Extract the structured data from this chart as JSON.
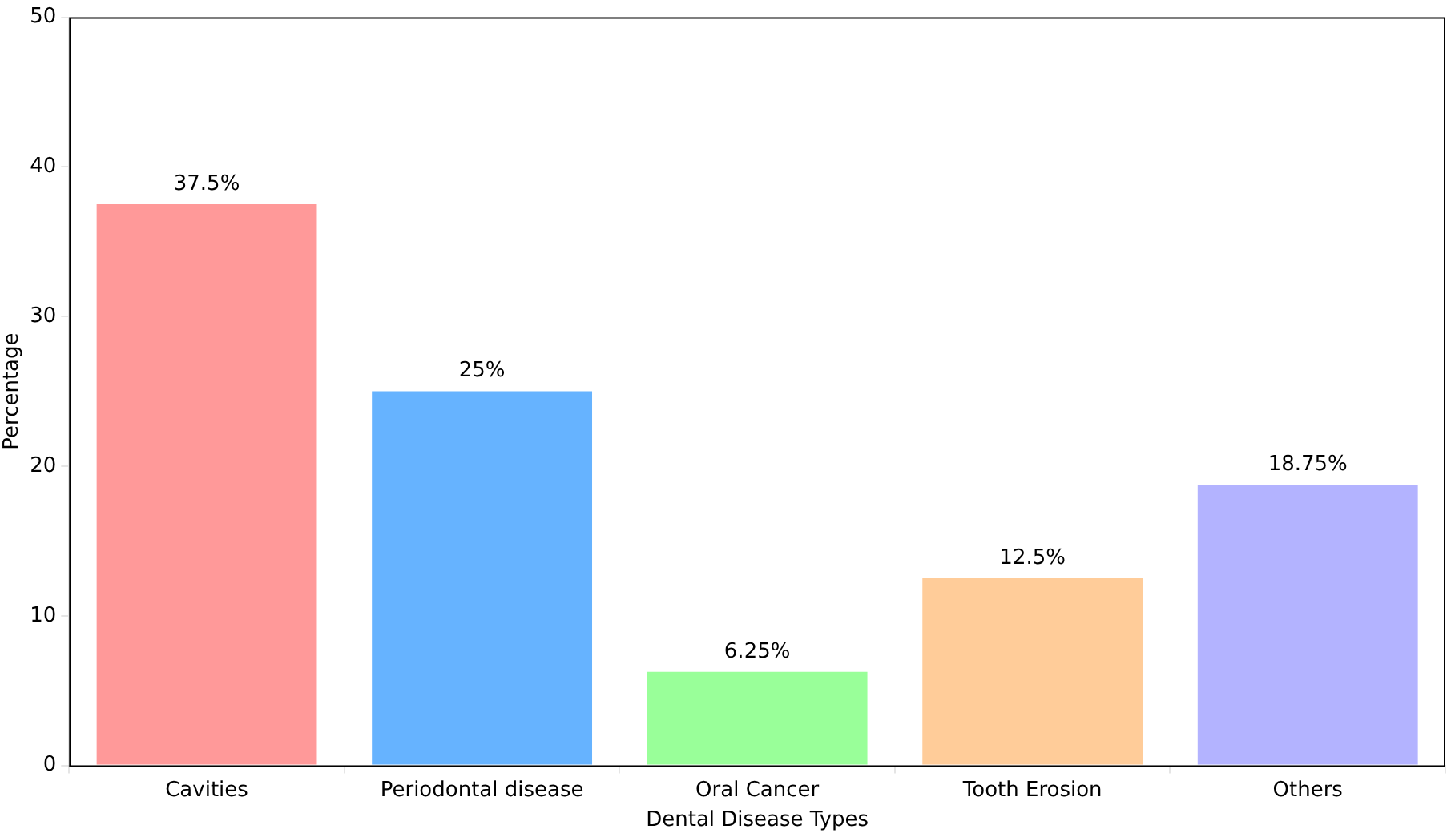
{
  "chart_data": {
    "type": "bar",
    "xlabel": "Dental Disease Types",
    "ylabel": "Percentage",
    "categories": [
      "Cavities",
      "Periodontal disease",
      "Oral Cancer",
      "Tooth Erosion",
      "Others"
    ],
    "values": [
      37.5,
      25,
      6.25,
      12.5,
      18.75
    ],
    "colors": [
      "#ff9999",
      "#66b3ff",
      "#99ff99",
      "#ffcc99",
      "#b3b3ff"
    ],
    "value_labels": [
      "37.5%",
      "25%",
      "6.25%",
      "12.5%",
      "18.75%"
    ],
    "ylim": [
      0,
      50
    ],
    "yticks": [
      0,
      10,
      20,
      30,
      40,
      50
    ],
    "grid": false,
    "legend": false
  }
}
